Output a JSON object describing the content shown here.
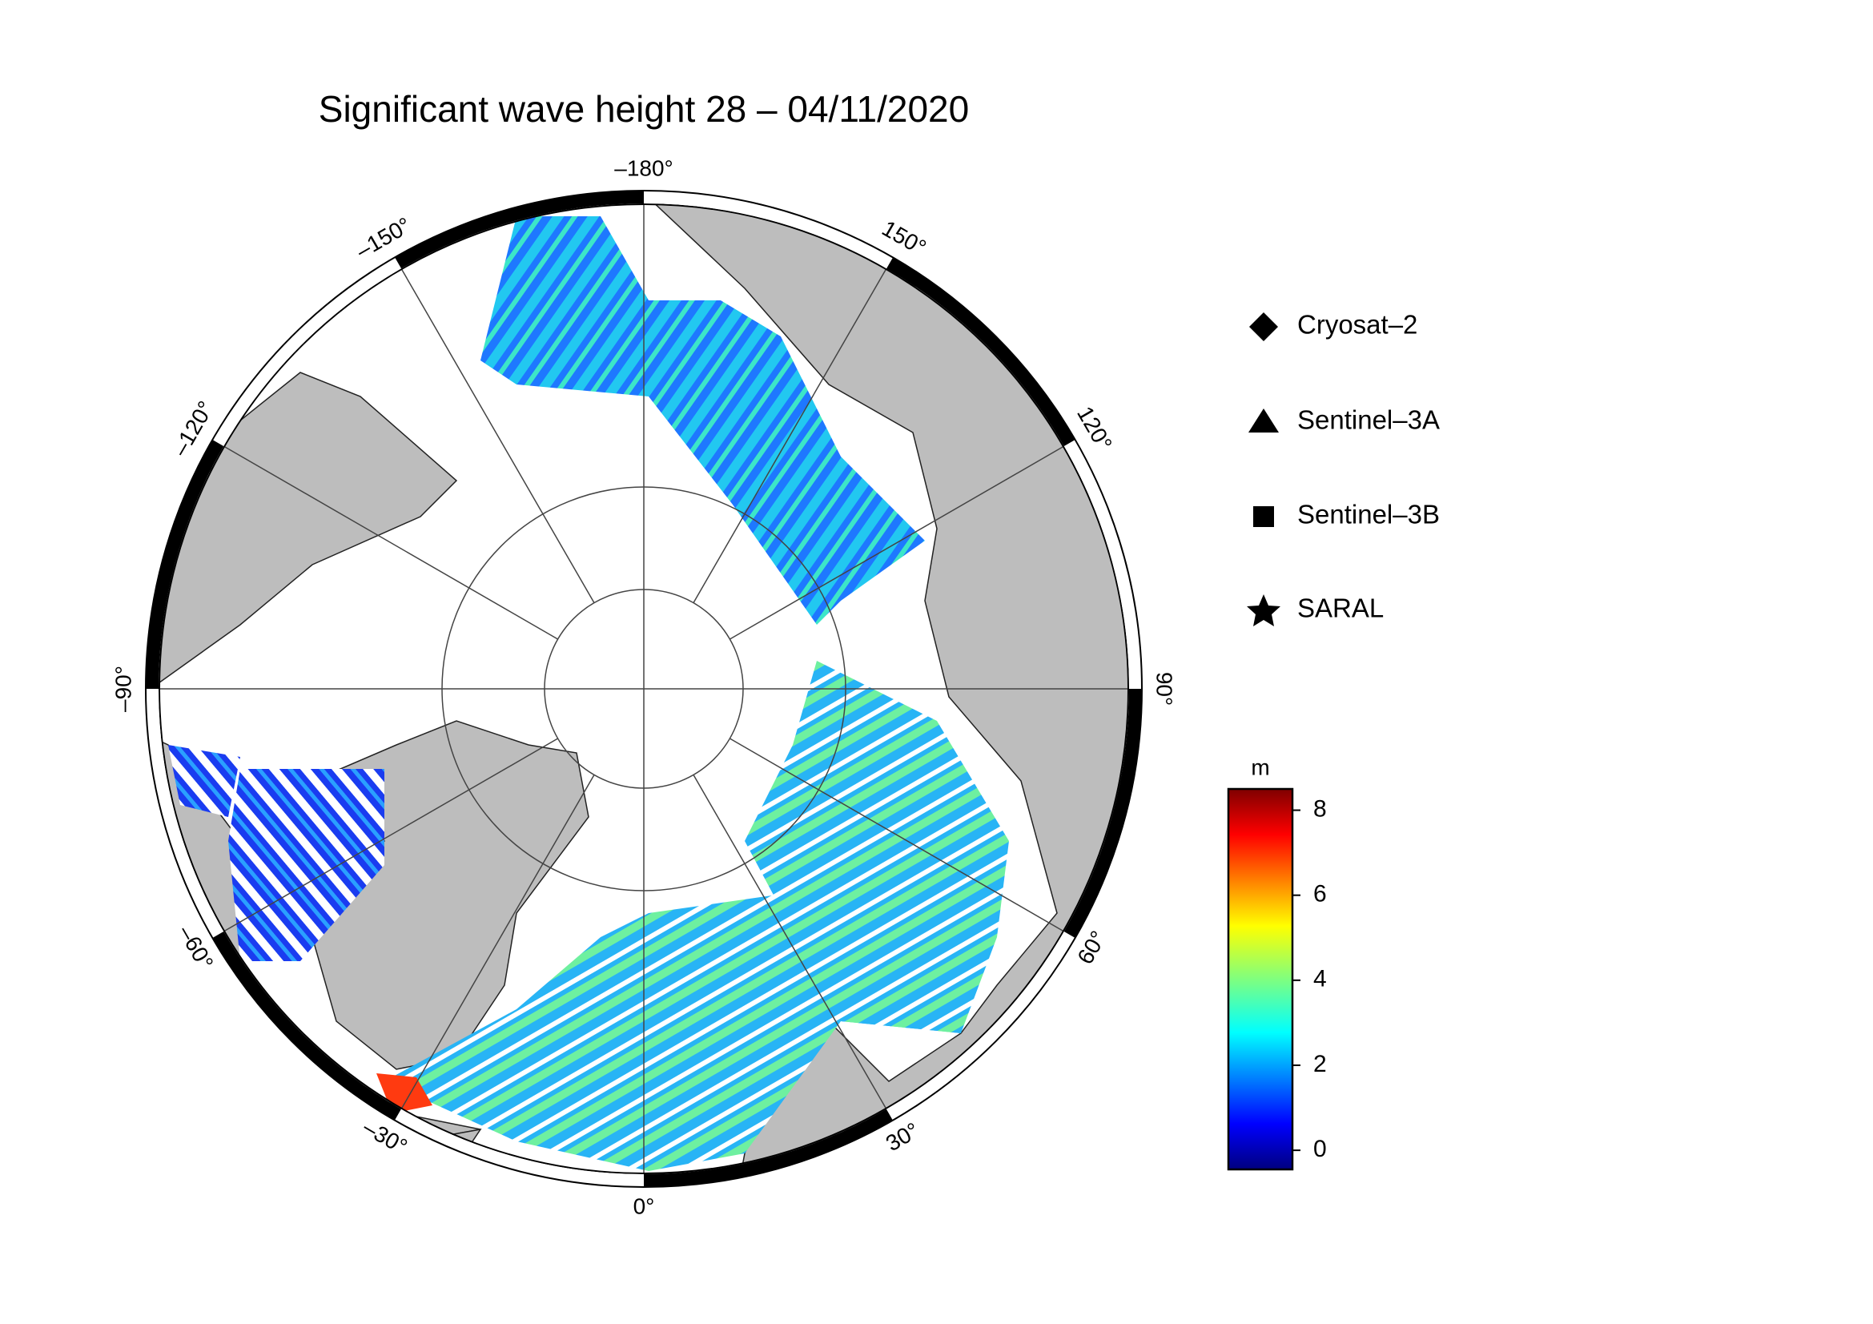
{
  "map": {
    "title": "Significant wave height 28 – 04/11/2020",
    "longitude_labels": [
      {
        "value": -180,
        "label": "–180°"
      },
      {
        "value": 150,
        "label": "150°"
      },
      {
        "value": 120,
        "label": "120°"
      },
      {
        "value": 90,
        "label": "90°"
      },
      {
        "value": 60,
        "label": "60°"
      },
      {
        "value": 30,
        "label": "30°"
      },
      {
        "value": 0,
        "label": "0°"
      },
      {
        "value": -30,
        "label": "–30°"
      },
      {
        "value": -60,
        "label": "–60°"
      },
      {
        "value": -90,
        "label": "–90°"
      },
      {
        "value": -120,
        "label": "–120°"
      },
      {
        "value": -150,
        "label": "–150°"
      }
    ],
    "legend": [
      "Cryosat–2",
      "Sentinel–3A",
      "Sentinel–3B",
      "SARAL"
    ],
    "colorbar": {
      "unit": "m",
      "lim": [
        -0.45,
        8.5
      ],
      "ticks": [
        0,
        2,
        4,
        6,
        8
      ]
    }
  }
}
